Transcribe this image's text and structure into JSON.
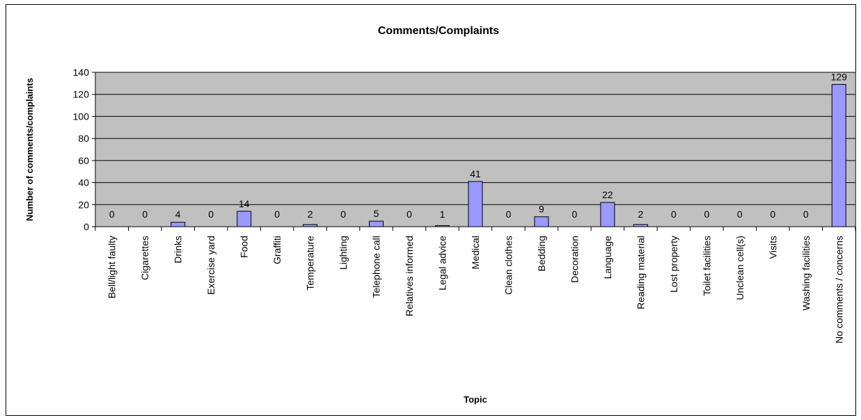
{
  "chart_data": {
    "type": "bar",
    "title": "Comments/Complaints",
    "xlabel": "Topic",
    "ylabel": "Number of comments/complaints",
    "ylim": [
      0,
      140
    ],
    "ytick_step": 20,
    "grid": true,
    "legend": "none",
    "categories": [
      "Bell/light faulty",
      "Cigarettes",
      "Drinks",
      "Exercise yard",
      "Food",
      "Graffiti",
      "Temperature",
      "Lighting",
      "Telephone call",
      "Relatives informed",
      "Legal advice",
      "Medical",
      "Clean clothes",
      "Bedding",
      "Decoration",
      "Language",
      "Reading material",
      "Lost property",
      "Toilet facilities",
      "Unclean cell(s)",
      "Visits",
      "Washing facilities",
      "No comments / concerns"
    ],
    "values": [
      0,
      0,
      4,
      0,
      14,
      0,
      2,
      0,
      5,
      0,
      1,
      41,
      0,
      9,
      0,
      22,
      2,
      0,
      0,
      0,
      0,
      0,
      129
    ],
    "colors": {
      "plot_background": "#c0c0c0",
      "bar_fill": "#9999ff",
      "bar_stroke": "#000000",
      "gridline": "#000000"
    }
  }
}
